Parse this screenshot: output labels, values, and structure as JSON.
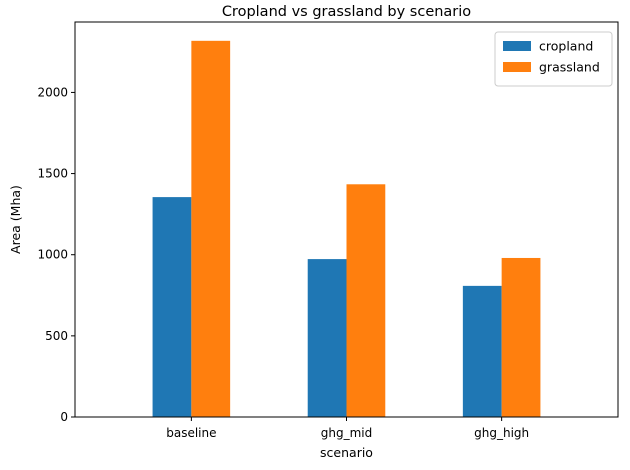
{
  "chart_data": {
    "type": "bar",
    "title": "Cropland vs grassland by scenario",
    "xlabel": "scenario",
    "ylabel": "Area (Mha)",
    "categories": [
      "baseline",
      "ghg_mid",
      "ghg_high"
    ],
    "series": [
      {
        "name": "cropland",
        "color": "#1f77b4",
        "values": [
          1355,
          973,
          808
        ]
      },
      {
        "name": "grassland",
        "color": "#ff7f0e",
        "values": [
          2318,
          1434,
          980
        ]
      }
    ],
    "ylim": [
      0,
      2434
    ],
    "yticks": [
      0,
      500,
      1000,
      1500,
      2000
    ],
    "grid": false,
    "legend_position": "top-right"
  }
}
